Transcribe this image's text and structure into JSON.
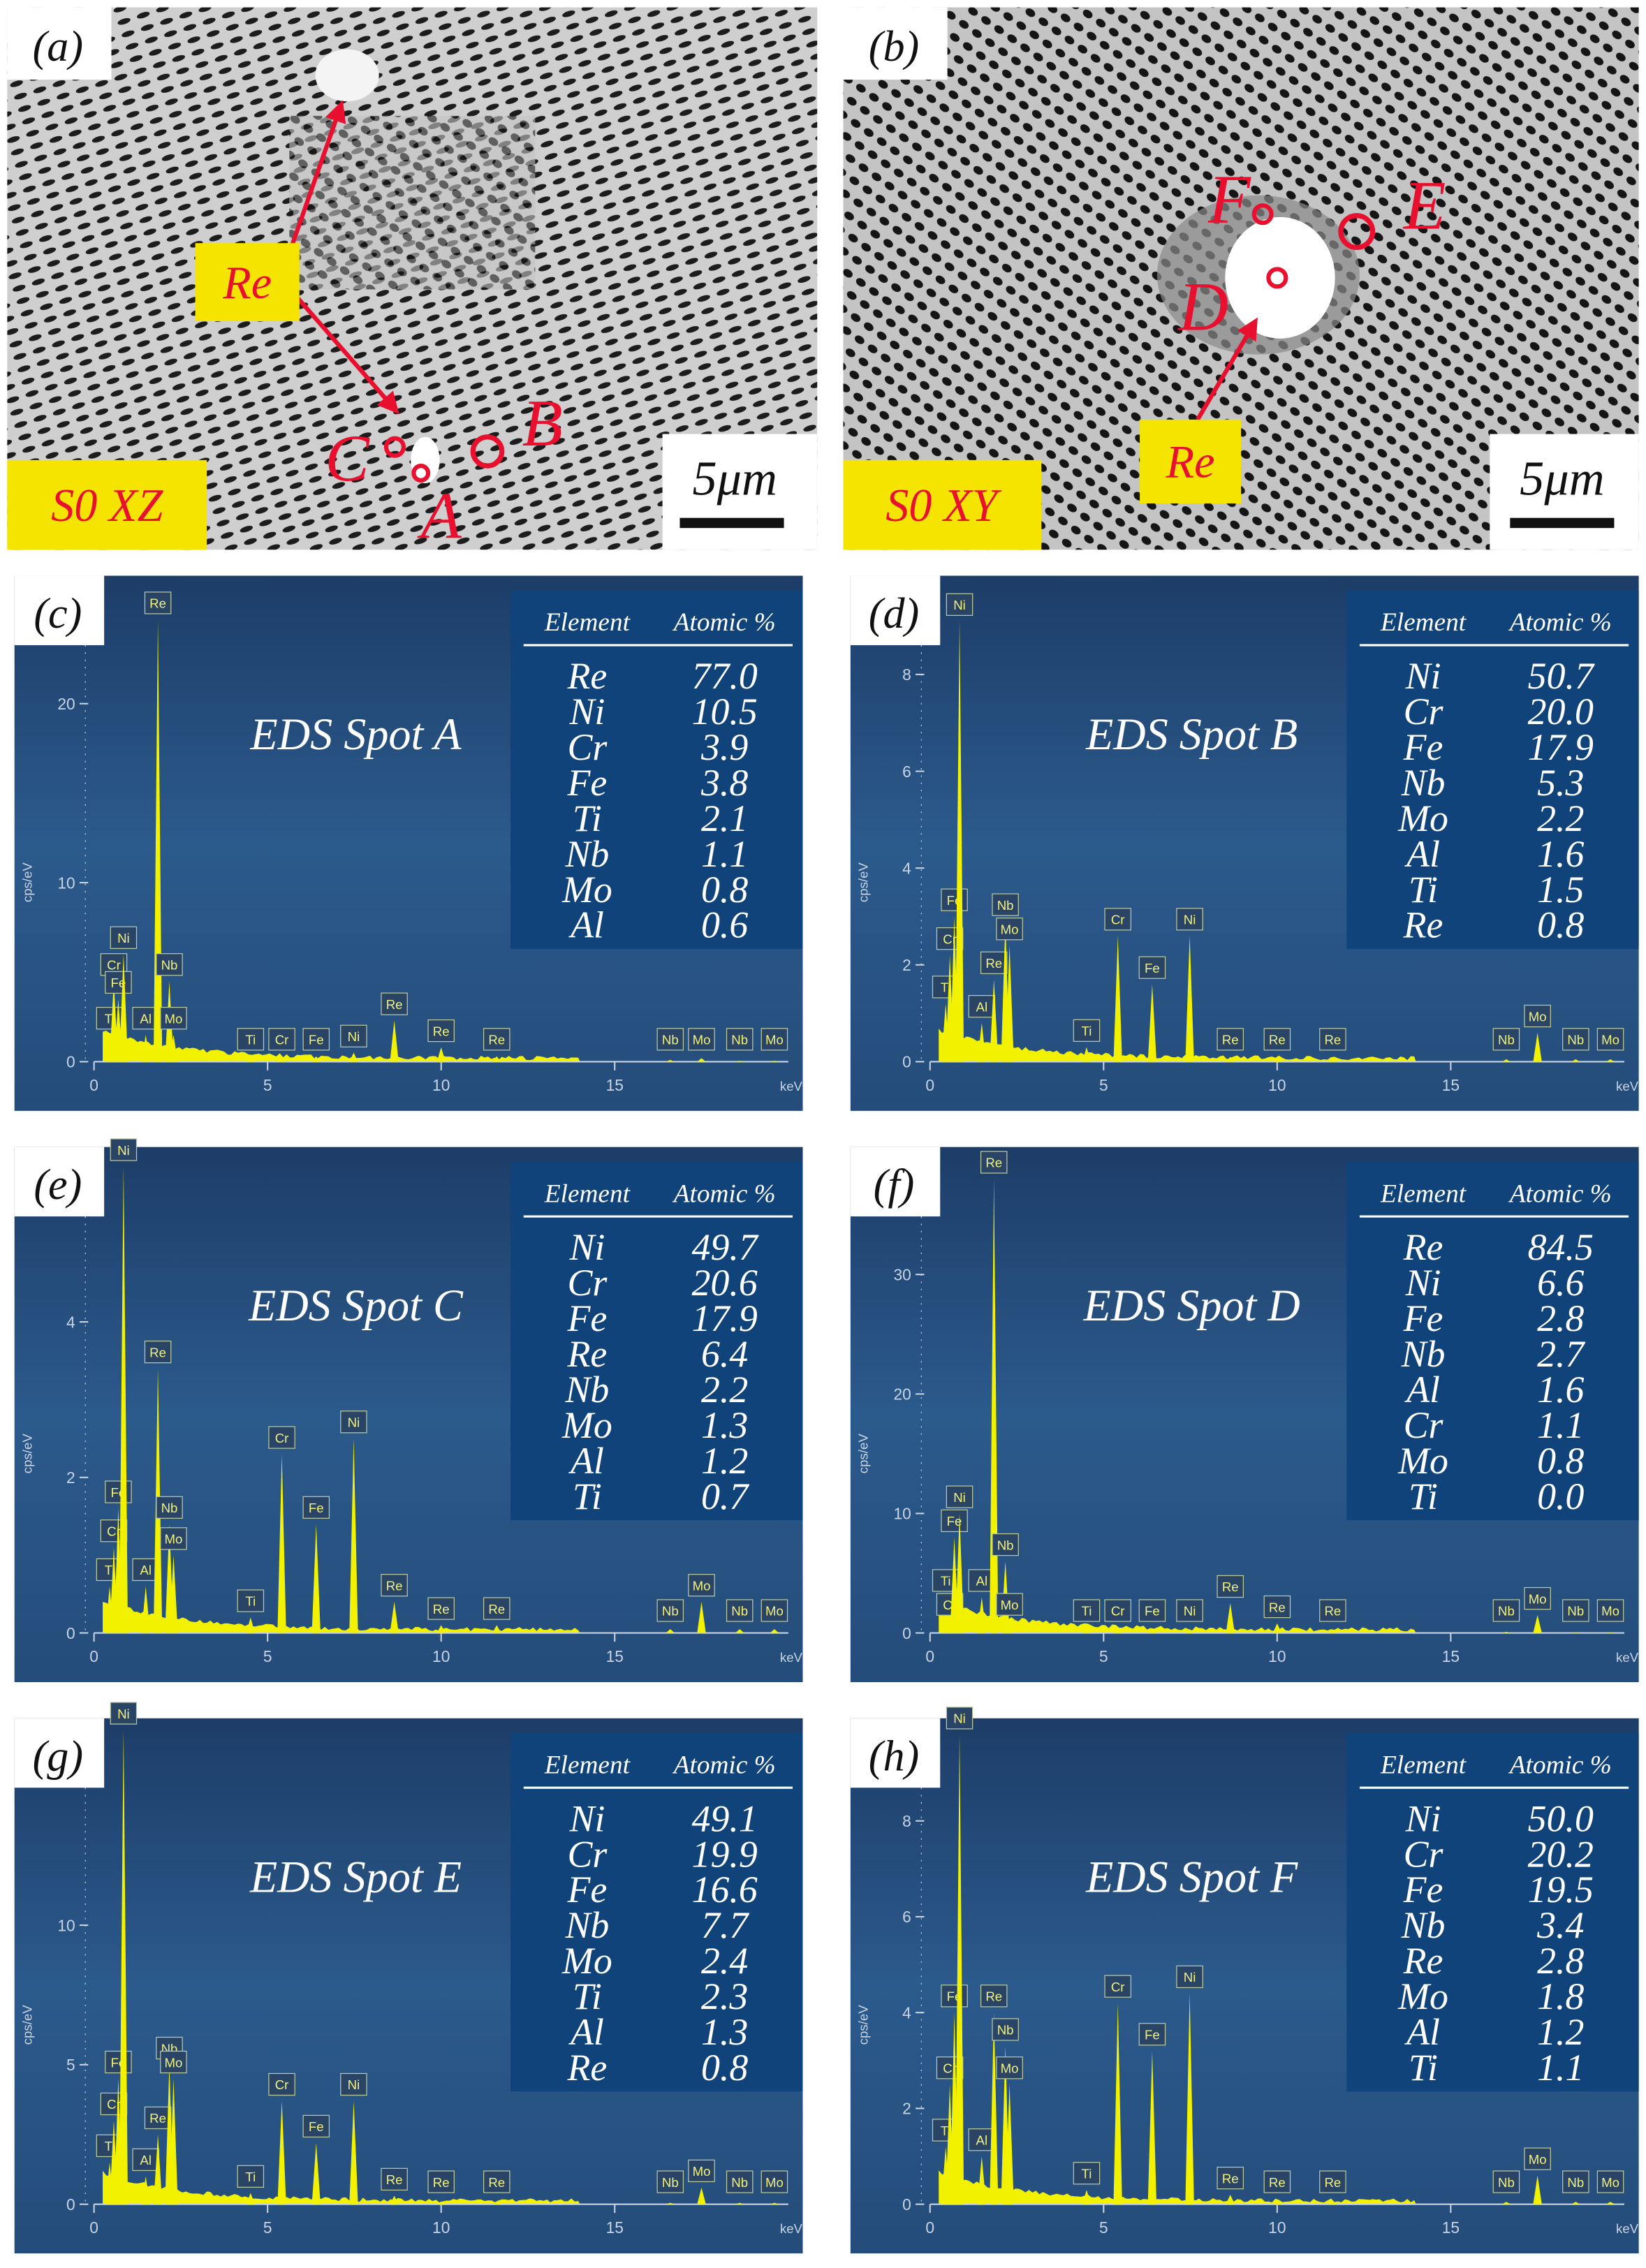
{
  "panels": [
    {
      "label": "(a)",
      "sample": "S0 XZ",
      "scale_bar": "5μm",
      "phase_label": "Re",
      "spots": [
        "A",
        "B",
        "C"
      ]
    },
    {
      "label": "(b)",
      "sample": "S0 XY",
      "scale_bar": "5μm",
      "phase_label": "Re",
      "spots": [
        "D",
        "E",
        "F"
      ]
    }
  ],
  "eds": [
    {
      "label": "(c)",
      "title": "EDS Spot A",
      "table": {
        "header": [
          "Element",
          "Atomic %"
        ],
        "rows": [
          [
            "Re",
            "77.0"
          ],
          [
            "Ni",
            "10.5"
          ],
          [
            "Cr",
            "3.9"
          ],
          [
            "Fe",
            "3.8"
          ],
          [
            "Ti",
            "2.1"
          ],
          [
            "Nb",
            "1.1"
          ],
          [
            "Mo",
            "0.8"
          ],
          [
            "Al",
            "0.6"
          ]
        ]
      },
      "chart": {
        "type": "spectrum",
        "xlabel": "keV",
        "ylabel": "cps/eV",
        "xlim": [
          0,
          20
        ],
        "ylim": [
          0,
          26.5
        ],
        "xticks": [
          0,
          5,
          10,
          15
        ],
        "yticks": [
          0,
          10,
          20
        ],
        "peak_labels": [
          "Ti",
          "Cr",
          "Fe",
          "Ni",
          "Al",
          "Re",
          "Nb",
          "Mo",
          "Ti",
          "Cr",
          "Fe",
          "Ni",
          "Re",
          "Re",
          "Re",
          "Nb",
          "Mo",
          "Nb",
          "Mo"
        ],
        "peak_energies": [
          0.45,
          0.57,
          0.7,
          0.85,
          1.49,
          1.84,
          2.17,
          2.29,
          4.51,
          5.41,
          6.4,
          7.48,
          8.65,
          10.0,
          11.6,
          16.6,
          17.5,
          18.6,
          19.6
        ],
        "peak_heights": [
          1.5,
          4.5,
          3.5,
          6,
          1.5,
          24.7,
          4.5,
          1.5,
          0.3,
          0.3,
          0.3,
          0.5,
          2.3,
          0.8,
          0.3,
          0.1,
          0.2,
          0.05,
          0.05
        ]
      }
    },
    {
      "label": "(d)",
      "title": "EDS Spot B",
      "table": {
        "header": [
          "Element",
          "Atomic %"
        ],
        "rows": [
          [
            "Ni",
            "50.7"
          ],
          [
            "Cr",
            "20.0"
          ],
          [
            "Fe",
            "17.9"
          ],
          [
            "Nb",
            "5.3"
          ],
          [
            "Mo",
            "2.2"
          ],
          [
            "Al",
            "1.6"
          ],
          [
            "Ti",
            "1.5"
          ],
          [
            "Re",
            "0.8"
          ]
        ]
      },
      "chart": {
        "type": "spectrum",
        "xlabel": "keV",
        "ylabel": "cps/eV",
        "xlim": [
          0,
          20
        ],
        "ylim": [
          0,
          9.8
        ],
        "xticks": [
          0,
          5,
          10,
          15
        ],
        "yticks": [
          0,
          2,
          4,
          6,
          8
        ],
        "peak_labels": [
          "Ti",
          "Cr",
          "Fe",
          "Ni",
          "Al",
          "Re",
          "Nb",
          "Mo",
          "Ti",
          "Cr",
          "Fe",
          "Ni",
          "Re",
          "Re",
          "Re",
          "Nb",
          "Mo",
          "Nb",
          "Mo"
        ],
        "peak_energies": [
          0.45,
          0.57,
          0.7,
          0.85,
          1.49,
          1.84,
          2.17,
          2.29,
          4.51,
          5.41,
          6.4,
          7.48,
          8.65,
          10.0,
          11.6,
          16.6,
          17.5,
          18.6,
          19.6
        ],
        "peak_heights": [
          1.2,
          2.2,
          3.0,
          9.1,
          0.8,
          1.7,
          2.9,
          2.4,
          0.3,
          2.6,
          1.6,
          2.6,
          0.1,
          0.1,
          0.05,
          0.05,
          0.6,
          0.05,
          0.05
        ]
      }
    },
    {
      "label": "(e)",
      "title": "EDS Spot C",
      "table": {
        "header": [
          "Element",
          "Atomic %"
        ],
        "rows": [
          [
            "Ni",
            "49.7"
          ],
          [
            "Cr",
            "20.6"
          ],
          [
            "Fe",
            "17.9"
          ],
          [
            "Re",
            "6.4"
          ],
          [
            "Nb",
            "2.2"
          ],
          [
            "Mo",
            "1.3"
          ],
          [
            "Al",
            "1.2"
          ],
          [
            "Ti",
            "0.7"
          ]
        ]
      },
      "chart": {
        "type": "spectrum",
        "xlabel": "keV",
        "ylabel": "cps/eV",
        "xlim": [
          0,
          20
        ],
        "ylim": [
          0,
          6.1
        ],
        "xticks": [
          0,
          5,
          10,
          15
        ],
        "yticks": [
          0,
          2,
          4
        ],
        "peak_labels": [
          "Ti",
          "Cr",
          "Fe",
          "Ni",
          "Al",
          "Re",
          "Nb",
          "Mo",
          "Ti",
          "Cr",
          "Fe",
          "Ni",
          "Re",
          "Re",
          "Re",
          "Nb",
          "Mo",
          "Nb",
          "Mo"
        ],
        "peak_energies": [
          0.45,
          0.57,
          0.7,
          0.85,
          1.49,
          1.84,
          2.17,
          2.29,
          4.51,
          5.41,
          6.4,
          7.48,
          8.65,
          10.0,
          11.6,
          16.6,
          17.5,
          18.6,
          19.6
        ],
        "peak_heights": [
          0.6,
          1.1,
          1.6,
          6,
          0.6,
          3.4,
          1.4,
          1.0,
          0.2,
          2.3,
          1.4,
          2.5,
          0.4,
          0.1,
          0.1,
          0.05,
          0.4,
          0.05,
          0.05
        ]
      }
    },
    {
      "label": "(f)",
      "title": "EDS Spot D",
      "table": {
        "header": [
          "Element",
          "Atomic %"
        ],
        "rows": [
          [
            "Re",
            "84.5"
          ],
          [
            "Ni",
            "6.6"
          ],
          [
            "Fe",
            "2.8"
          ],
          [
            "Nb",
            "2.7"
          ],
          [
            "Al",
            "1.6"
          ],
          [
            "Cr",
            "1.1"
          ],
          [
            "Mo",
            "0.8"
          ],
          [
            "Ti",
            "0.0"
          ]
        ]
      },
      "chart": {
        "type": "spectrum",
        "xlabel": "keV",
        "ylabel": "cps/eV",
        "xlim": [
          0,
          20
        ],
        "ylim": [
          0,
          39.7
        ],
        "xticks": [
          0,
          5,
          10,
          15
        ],
        "yticks": [
          0,
          10,
          20,
          30
        ],
        "peak_labels": [
          "Ti",
          "Cr",
          "Fe",
          "Ni",
          "Al",
          "Re",
          "Nb",
          "Mo",
          "Ti",
          "Cr",
          "Fe",
          "Ni",
          "Re",
          "Re",
          "Re",
          "Nb",
          "Mo",
          "Nb",
          "Mo"
        ],
        "peak_energies": [
          0.45,
          0.57,
          0.7,
          0.85,
          1.49,
          1.84,
          2.17,
          2.29,
          4.51,
          5.41,
          6.4,
          7.48,
          8.65,
          10.0,
          11.6,
          16.6,
          17.5,
          18.6,
          19.6
        ],
        "peak_heights": [
          3,
          1,
          8,
          10,
          3,
          38,
          6,
          1,
          0.2,
          0.2,
          0.2,
          0.3,
          2.5,
          0.8,
          0.2,
          0.1,
          1.5,
          0.05,
          0.05
        ]
      }
    },
    {
      "label": "(g)",
      "title": "EDS Spot E",
      "table": {
        "header": [
          "Element",
          "Atomic %"
        ],
        "rows": [
          [
            "Ni",
            "49.1"
          ],
          [
            "Cr",
            "19.9"
          ],
          [
            "Fe",
            "16.6"
          ],
          [
            "Nb",
            "7.7"
          ],
          [
            "Mo",
            "2.4"
          ],
          [
            "Ti",
            "2.3"
          ],
          [
            "Al",
            "1.3"
          ],
          [
            "Re",
            "0.8"
          ]
        ]
      },
      "chart": {
        "type": "spectrum",
        "xlabel": "keV",
        "ylabel": "cps/eV",
        "xlim": [
          0,
          20
        ],
        "ylim": [
          0,
          17
        ],
        "xticks": [
          0,
          5,
          10,
          15
        ],
        "yticks": [
          0,
          5,
          10
        ],
        "peak_labels": [
          "Ti",
          "Cr",
          "Fe",
          "Ni",
          "Al",
          "Re",
          "Nb",
          "Mo",
          "Ti",
          "Cr",
          "Fe",
          "Ni",
          "Re",
          "Re",
          "Re",
          "Nb",
          "Mo",
          "Nb",
          "Mo"
        ],
        "peak_energies": [
          0.45,
          0.57,
          0.7,
          0.85,
          1.49,
          1.84,
          2.17,
          2.29,
          4.51,
          5.41,
          6.4,
          7.48,
          8.65,
          10.0,
          11.6,
          16.6,
          17.5,
          18.6,
          19.6
        ],
        "peak_heights": [
          1.5,
          3,
          4.5,
          17,
          1,
          2.5,
          5,
          4.5,
          0.4,
          3.7,
          2.2,
          3.7,
          0.3,
          0.1,
          0.1,
          0.05,
          0.6,
          0.05,
          0.05
        ]
      }
    },
    {
      "label": "(h)",
      "title": "EDS Spot F",
      "table": {
        "header": [
          "Element",
          "Atomic %"
        ],
        "rows": [
          [
            "Ni",
            "50.0"
          ],
          [
            "Cr",
            "20.2"
          ],
          [
            "Fe",
            "19.5"
          ],
          [
            "Nb",
            "3.4"
          ],
          [
            "Re",
            "2.8"
          ],
          [
            "Mo",
            "1.8"
          ],
          [
            "Al",
            "1.2"
          ],
          [
            "Ti",
            "1.1"
          ]
        ]
      },
      "chart": {
        "type": "spectrum",
        "xlabel": "keV",
        "ylabel": "cps/eV",
        "xlim": [
          0,
          20
        ],
        "ylim": [
          0,
          9.9
        ],
        "xticks": [
          0,
          5,
          10,
          15
        ],
        "yticks": [
          0,
          2,
          4,
          6,
          8
        ],
        "peak_labels": [
          "Ti",
          "Cr",
          "Fe",
          "Ni",
          "Al",
          "Re",
          "Nb",
          "Mo",
          "Ti",
          "Cr",
          "Fe",
          "Ni",
          "Re",
          "Re",
          "Re",
          "Nb",
          "Mo",
          "Nb",
          "Mo"
        ],
        "peak_energies": [
          0.45,
          0.57,
          0.7,
          0.85,
          1.49,
          1.84,
          2.17,
          2.29,
          4.51,
          5.41,
          6.4,
          7.48,
          8.65,
          10.0,
          11.6,
          16.6,
          17.5,
          18.6,
          19.6
        ],
        "peak_heights": [
          1.2,
          2.5,
          4,
          9.8,
          1,
          4,
          3.3,
          2.5,
          0.3,
          4.2,
          3.2,
          4.4,
          0.2,
          0.1,
          0.05,
          0.05,
          0.6,
          0.05,
          0.05
        ]
      }
    }
  ]
}
